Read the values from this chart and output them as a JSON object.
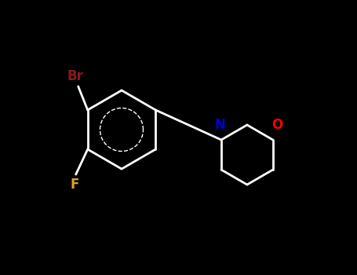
{
  "background_color": "#000000",
  "bond_color": "#ffffff",
  "N_color": "#0000cd",
  "O_color": "#ff0000",
  "Br_color": "#8b1a1a",
  "F_color": "#daa520",
  "figsize": [
    4.55,
    3.5
  ],
  "dpi": 100,
  "Br_label": "Br",
  "F_label": "F",
  "N_label": "N",
  "O_label": "O",
  "bond_lw": 2.0,
  "font_size": 12
}
